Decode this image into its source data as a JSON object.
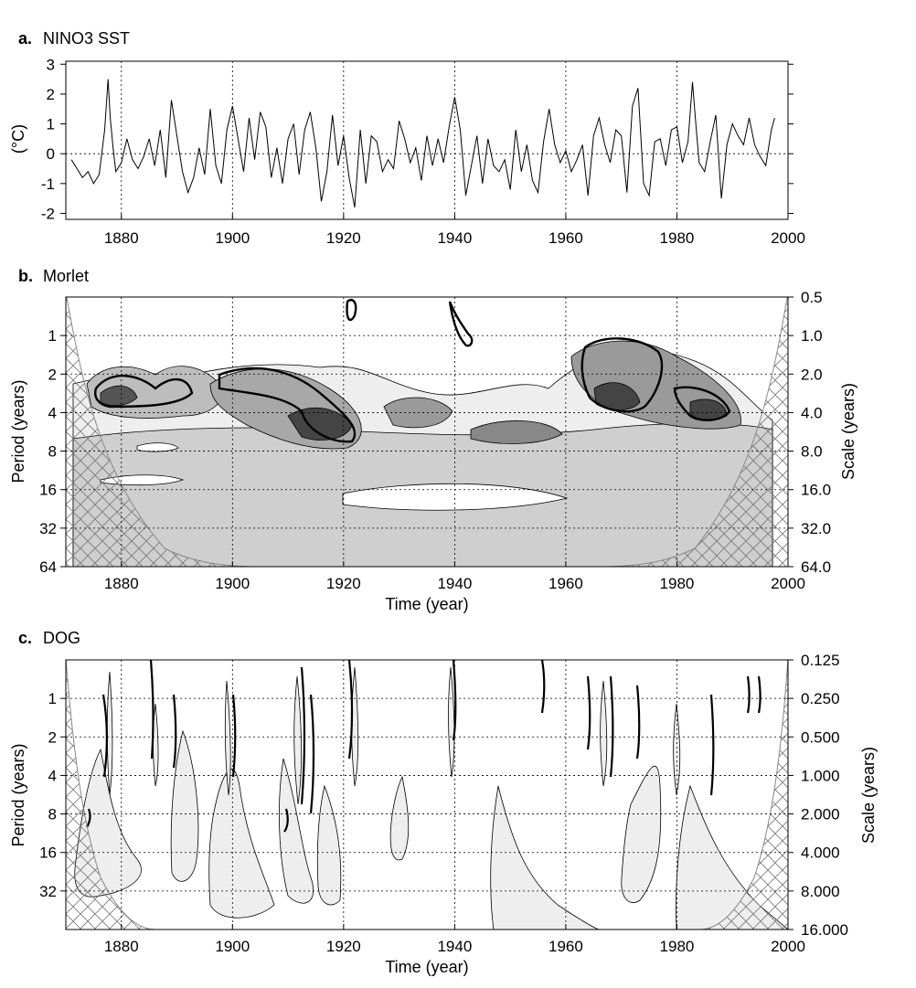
{
  "chart_data": [
    {
      "type": "line",
      "panel": "a.",
      "title": "NINO3 SST",
      "ylabel": "(°C)",
      "xlabel": "",
      "xlim": [
        1870,
        2000
      ],
      "ylim": [
        -2.2,
        3.1
      ],
      "xticks": [
        1880,
        1900,
        1920,
        1940,
        1960,
        1980,
        2000
      ],
      "yticks": [
        3,
        2,
        1,
        0,
        -1,
        -2
      ],
      "grid": "dotted vertical lines every 20 years, dotted zero line",
      "series": [
        {
          "x": [
            1871.0,
            1872.0,
            1873.0,
            1874.0,
            1875.0,
            1876.0,
            1877.0,
            1877.6,
            1878.0,
            1878.5,
            1879.0,
            1880.0,
            1881.0,
            1882.0,
            1883.0,
            1884.0,
            1885.0,
            1886.0,
            1887.0,
            1888.0,
            1889.0,
            1890.0,
            1891.0,
            1892.0,
            1893.0,
            1894.0,
            1895.0,
            1896.0,
            1897.0,
            1898.0,
            1899.0,
            1900.0,
            1901.0,
            1902.0,
            1903.0,
            1904.0,
            1905.0,
            1906.0,
            1907.0,
            1908.0,
            1909.0,
            1910.0,
            1911.0,
            1912.0,
            1913.0,
            1914.0,
            1915.0,
            1916.0,
            1917.0,
            1918.0,
            1919.0,
            1920.0,
            1921.0,
            1922.0,
            1923.0,
            1924.0,
            1925.0,
            1926.0,
            1927.0,
            1928.0,
            1929.0,
            1930.0,
            1931.0,
            1932.0,
            1933.0,
            1934.0,
            1935.0,
            1936.0,
            1937.0,
            1938.0,
            1939.0,
            1940.0,
            1941.0,
            1942.0,
            1943.0,
            1944.0,
            1945.0,
            1946.0,
            1947.0,
            1948.0,
            1949.0,
            1950.0,
            1951.0,
            1952.0,
            1953.0,
            1954.0,
            1955.0,
            1956.0,
            1957.0,
            1958.0,
            1959.0,
            1960.0,
            1961.0,
            1962.0,
            1963.0,
            1964.0,
            1965.0,
            1966.0,
            1967.0,
            1968.0,
            1969.0,
            1970.0,
            1971.0,
            1972.0,
            1973.0,
            1974.0,
            1975.0,
            1976.0,
            1977.0,
            1978.0,
            1979.0,
            1980.0,
            1981.0,
            1982.0,
            1982.8,
            1983.5,
            1984.0,
            1985.0,
            1986.0,
            1987.0,
            1988.0,
            1989.0,
            1990.0,
            1991.0,
            1992.0,
            1993.0,
            1994.0,
            1995.0,
            1996.0,
            1997.0,
            1997.6
          ],
          "values": [
            -0.2,
            -0.5,
            -0.8,
            -0.6,
            -1.0,
            -0.7,
            0.8,
            2.5,
            1.2,
            0.2,
            -0.6,
            -0.3,
            0.5,
            -0.2,
            -0.5,
            -0.1,
            0.5,
            -0.4,
            0.8,
            -0.8,
            1.8,
            0.6,
            -0.6,
            -1.3,
            -0.8,
            0.2,
            -0.7,
            1.5,
            -0.4,
            -1.0,
            0.8,
            1.6,
            0.5,
            -0.6,
            1.2,
            -0.2,
            1.4,
            0.9,
            -0.8,
            0.2,
            -1.0,
            0.5,
            1.0,
            -0.7,
            0.8,
            1.4,
            0.2,
            -1.6,
            -0.6,
            1.3,
            -0.4,
            0.6,
            -0.8,
            -1.8,
            0.8,
            -1.0,
            0.6,
            0.4,
            -0.6,
            -0.2,
            -0.5,
            1.1,
            0.5,
            -0.3,
            0.2,
            -0.9,
            0.6,
            -0.4,
            0.5,
            -0.3,
            0.9,
            1.9,
            0.8,
            -1.4,
            -0.4,
            0.6,
            -1.0,
            0.5,
            -0.4,
            -0.6,
            -0.2,
            -1.2,
            0.8,
            -0.6,
            0.3,
            -0.9,
            -1.3,
            0.4,
            1.5,
            0.3,
            -0.3,
            0.1,
            -0.6,
            -0.2,
            0.3,
            -1.4,
            0.6,
            1.2,
            0.3,
            -0.3,
            0.8,
            0.6,
            -1.3,
            1.6,
            2.2,
            -1.0,
            -1.4,
            0.4,
            0.5,
            -0.4,
            0.8,
            0.9,
            -0.3,
            0.4,
            2.4,
            0.8,
            -0.3,
            -0.6,
            0.4,
            1.3,
            -1.5,
            0.3,
            1.0,
            0.6,
            0.3,
            1.2,
            0.3,
            -0.1,
            -0.4,
            0.8,
            1.2
          ]
        }
      ]
    },
    {
      "type": "heatmap",
      "panel": "b.",
      "title": "Morlet",
      "xlabel": "Time (year)",
      "ylabel": "Period (years)",
      "ylabel_right": "Scale (years)",
      "xlim": [
        1870,
        2000
      ],
      "xticks": [
        1880,
        1900,
        1920,
        1940,
        1960,
        1980,
        2000
      ],
      "yticks_left": [
        "1",
        "2",
        "4",
        "8",
        "16",
        "32",
        "64"
      ],
      "yticks_right": [
        "0.5",
        "1.0",
        "2.0",
        "4.0",
        "8.0",
        "16.0",
        "32.0",
        "64.0"
      ],
      "ylog": true,
      "shading": "grey contour levels of wavelet power; bold contours mark 95% significance; hatched region is the cone of influence"
    },
    {
      "type": "heatmap",
      "panel": "c.",
      "title": "DOG",
      "xlabel": "Time (year)",
      "ylabel": "Period (years)",
      "ylabel_right": "Scale (years)",
      "xlim": [
        1870,
        2000
      ],
      "xticks": [
        1880,
        1900,
        1920,
        1940,
        1960,
        1980,
        2000
      ],
      "yticks_left": [
        "1",
        "2",
        "4",
        "8",
        "16",
        "32"
      ],
      "yticks_right": [
        "0.125",
        "0.250",
        "0.500",
        "1.000",
        "2.000",
        "4.000",
        "8.000",
        "16.000"
      ],
      "ylog": true,
      "shading": "light grey contour regions with vertical plume-like structures; bold contours mark significance; hatched region is the cone of influence"
    }
  ]
}
